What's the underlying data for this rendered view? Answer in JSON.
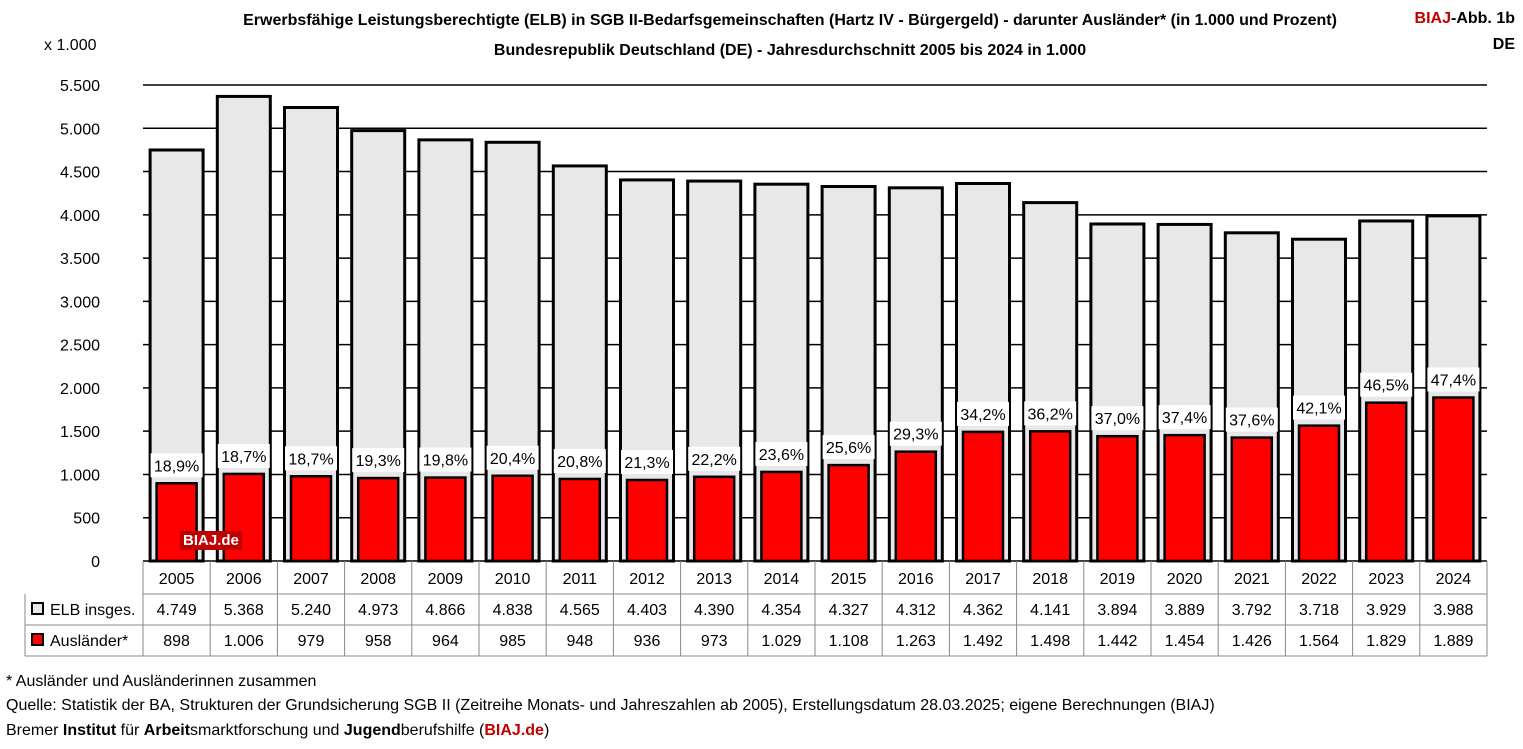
{
  "header": {
    "title_line1": "Erwerbsfähige Leistungsberechtigte (ELB) in SGB II-Bedarfsgemeinschaften (Hartz IV - Bürgergeld) - darunter Ausländer* (in 1.000 und Prozent)",
    "title_line2": "Bundesrepublik Deutschland (DE) - Jahresdurchschnitt 2005 bis 2024 in 1.000",
    "badge_brand": "BIAJ",
    "badge_rest": "-Abb. 1b",
    "badge_region": "DE"
  },
  "watermark": "BIAJ.de",
  "colors": {
    "total_fill": "#e8e8e8",
    "foreign_fill": "#ff0000",
    "brand_red": "#c00000"
  },
  "chart_data": {
    "type": "bar",
    "title": "Erwerbsfähige Leistungsberechtigte (ELB) in SGB II-Bedarfsgemeinschaften (Hartz IV - Bürgergeld) - darunter Ausländer* (in 1.000 und Prozent)",
    "subtitle": "Bundesrepublik Deutschland (DE) - Jahresdurchschnitt 2005 bis 2024 in 1.000",
    "ylabel": "x 1.000",
    "xlabel": "",
    "ylim": [
      0,
      5500
    ],
    "yticks": [
      0,
      500,
      1000,
      1500,
      2000,
      2500,
      3000,
      3500,
      4000,
      4500,
      5000,
      5500
    ],
    "ytick_labels": [
      "0",
      "500",
      "1.000",
      "1.500",
      "2.000",
      "2.500",
      "3.000",
      "3.500",
      "4.000",
      "4.500",
      "5.000",
      "5.500"
    ],
    "grid": true,
    "categories": [
      "2005",
      "2006",
      "2007",
      "2008",
      "2009",
      "2010",
      "2011",
      "2012",
      "2013",
      "2014",
      "2015",
      "2016",
      "2017",
      "2018",
      "2019",
      "2020",
      "2021",
      "2022",
      "2023",
      "2024"
    ],
    "series": [
      {
        "name": "ELB insges.",
        "values": [
          4749,
          5368,
          5240,
          4973,
          4866,
          4838,
          4565,
          4403,
          4390,
          4354,
          4327,
          4312,
          4362,
          4141,
          3894,
          3889,
          3792,
          3718,
          3929,
          3988
        ],
        "labels": [
          "4.749",
          "5.368",
          "5.240",
          "4.973",
          "4.866",
          "4.838",
          "4.565",
          "4.403",
          "4.390",
          "4.354",
          "4.327",
          "4.312",
          "4.362",
          "4.141",
          "3.894",
          "3.889",
          "3.792",
          "3.718",
          "3.929",
          "3.988"
        ]
      },
      {
        "name": "Ausländer*",
        "values": [
          898,
          1006,
          979,
          958,
          964,
          985,
          948,
          936,
          973,
          1029,
          1108,
          1263,
          1492,
          1498,
          1442,
          1454,
          1426,
          1564,
          1829,
          1889
        ],
        "labels": [
          "898",
          "1.006",
          "979",
          "958",
          "964",
          "985",
          "948",
          "936",
          "973",
          "1.029",
          "1.108",
          "1.263",
          "1.492",
          "1.498",
          "1.442",
          "1.454",
          "1.426",
          "1.564",
          "1.829",
          "1.889"
        ]
      }
    ],
    "percent_labels": [
      "18,9%",
      "18,7%",
      "18,7%",
      "19,3%",
      "19,8%",
      "20,4%",
      "20,8%",
      "21,3%",
      "22,2%",
      "23,6%",
      "25,6%",
      "29,3%",
      "34,2%",
      "36,2%",
      "37,0%",
      "37,4%",
      "37,6%",
      "42,1%",
      "46,5%",
      "47,4%"
    ]
  },
  "footer": {
    "note": "* Ausländer und Ausländerinnen zusammen",
    "source": "Quelle: Statistik der BA, Strukturen der Grundsicherung SGB II (Zeitreihe Monats- und Jahreszahlen ab 2005), Erstellungsdatum 28.03.2025; eigene Berechnungen (BIAJ)",
    "org_1": "Bremer ",
    "org_2": "Institut",
    "org_3": " für ",
    "org_4": "Arbeit",
    "org_5": "smarktforschung und ",
    "org_6": "Jugend",
    "org_7": "berufshilfe (",
    "org_8": "BIAJ.de",
    "org_9": ")"
  }
}
